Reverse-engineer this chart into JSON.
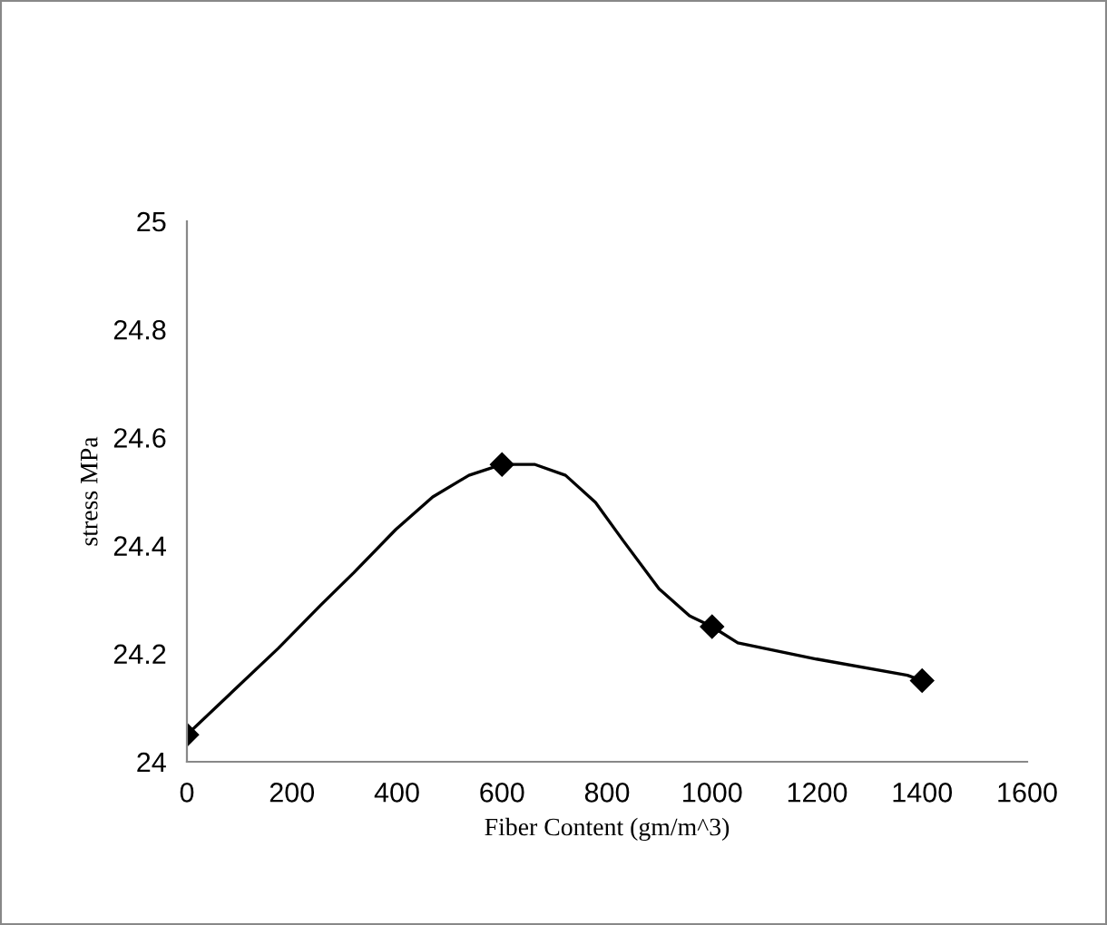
{
  "chart_data": {
    "type": "line",
    "xlabel": "Fiber Content (gm/m^3)",
    "ylabel": "stress MPa",
    "series": [
      {
        "color": "#000000",
        "x": [
          0,
          87,
          174,
          255,
          318,
          398,
          468,
          537,
          600,
          663,
          721,
          778,
          830,
          899,
          957,
          1000,
          1049,
          1199,
          1372,
          1400
        ],
        "values": [
          24.05,
          24.13,
          24.21,
          24.29,
          24.35,
          24.43,
          24.49,
          24.53,
          24.55,
          24.55,
          24.53,
          24.48,
          24.41,
          24.32,
          24.27,
          24.25,
          24.22,
          24.19,
          24.16,
          24.15
        ]
      },
      {
        "type": "scatter",
        "marker": "diamond",
        "color": "#000000",
        "x": [
          0,
          600,
          1000,
          1400
        ],
        "values": [
          24.05,
          24.55,
          24.25,
          24.15
        ]
      }
    ],
    "xlim": [
      0,
      1600
    ],
    "xticks": [
      0,
      200,
      400,
      600,
      800,
      1000,
      1200,
      1400,
      1600
    ],
    "ylim": [
      24,
      25
    ],
    "yticks": [
      24,
      24.2,
      24.4,
      24.6,
      24.8,
      25
    ],
    "line_style": "solid",
    "grid": false,
    "legend": false
  }
}
